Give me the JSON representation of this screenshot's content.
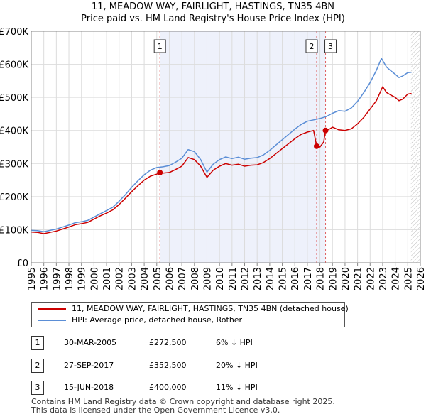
{
  "chart_data": {
    "type": "line",
    "title_line1": "11, MEADOW WAY, FAIRLIGHT, HASTINGS, TN35 4BN",
    "title_line2": "Price paid vs. HM Land Registry's House Price Index (HPI)",
    "xlim": [
      1995,
      2026
    ],
    "ylim": [
      0,
      700000
    ],
    "x_ticks": [
      1995,
      1996,
      1997,
      1998,
      1999,
      2000,
      2001,
      2002,
      2003,
      2004,
      2005,
      2006,
      2007,
      2008,
      2009,
      2010,
      2011,
      2012,
      2013,
      2014,
      2015,
      2016,
      2017,
      2018,
      2019,
      2020,
      2021,
      2022,
      2023,
      2024,
      2025,
      2026
    ],
    "y_ticks": [
      {
        "value": 0,
        "label": "£0"
      },
      {
        "value": 100000,
        "label": "£100K"
      },
      {
        "value": 200000,
        "label": "£200K"
      },
      {
        "value": 300000,
        "label": "£300K"
      },
      {
        "value": 400000,
        "label": "£400K"
      },
      {
        "value": 500000,
        "label": "£500K"
      },
      {
        "value": 600000,
        "label": "£600K"
      },
      {
        "value": 700000,
        "label": "£700K"
      }
    ],
    "series": [
      {
        "name": "11, MEADOW WAY, FAIRLIGHT, HASTINGS, TN35 4BN (detached house)",
        "color": "#cc0000",
        "points": [
          [
            1995.0,
            93000
          ],
          [
            1995.5,
            92000
          ],
          [
            1996.0,
            88000
          ],
          [
            1996.5,
            92000
          ],
          [
            1997.0,
            96000
          ],
          [
            1997.5,
            102000
          ],
          [
            1998.0,
            108000
          ],
          [
            1998.5,
            115000
          ],
          [
            1999.0,
            118000
          ],
          [
            1999.5,
            122000
          ],
          [
            2000.0,
            132000
          ],
          [
            2000.5,
            142000
          ],
          [
            2001.0,
            150000
          ],
          [
            2001.5,
            160000
          ],
          [
            2002.0,
            176000
          ],
          [
            2002.5,
            195000
          ],
          [
            2003.0,
            215000
          ],
          [
            2003.5,
            233000
          ],
          [
            2004.0,
            250000
          ],
          [
            2004.5,
            262000
          ],
          [
            2005.0,
            268000
          ],
          [
            2005.25,
            272500
          ],
          [
            2005.5,
            271000
          ],
          [
            2006.0,
            273000
          ],
          [
            2006.5,
            282000
          ],
          [
            2007.0,
            292000
          ],
          [
            2007.5,
            318000
          ],
          [
            2008.0,
            312000
          ],
          [
            2008.5,
            292000
          ],
          [
            2009.0,
            258000
          ],
          [
            2009.5,
            280000
          ],
          [
            2010.0,
            292000
          ],
          [
            2010.5,
            300000
          ],
          [
            2011.0,
            295000
          ],
          [
            2011.5,
            298000
          ],
          [
            2012.0,
            292000
          ],
          [
            2012.5,
            295000
          ],
          [
            2013.0,
            296000
          ],
          [
            2013.5,
            303000
          ],
          [
            2014.0,
            315000
          ],
          [
            2014.5,
            330000
          ],
          [
            2015.0,
            345000
          ],
          [
            2015.5,
            360000
          ],
          [
            2016.0,
            375000
          ],
          [
            2016.5,
            388000
          ],
          [
            2017.0,
            395000
          ],
          [
            2017.5,
            400000
          ],
          [
            2017.74,
            352500
          ],
          [
            2018.0,
            350000
          ],
          [
            2018.3,
            365000
          ],
          [
            2018.45,
            400000
          ],
          [
            2018.8,
            405000
          ],
          [
            2019.0,
            410000
          ],
          [
            2019.5,
            402000
          ],
          [
            2020.0,
            400000
          ],
          [
            2020.5,
            405000
          ],
          [
            2021.0,
            420000
          ],
          [
            2021.5,
            440000
          ],
          [
            2022.0,
            465000
          ],
          [
            2022.5,
            490000
          ],
          [
            2023.0,
            532000
          ],
          [
            2023.3,
            515000
          ],
          [
            2023.6,
            508000
          ],
          [
            2024.0,
            500000
          ],
          [
            2024.3,
            490000
          ],
          [
            2024.6,
            495000
          ],
          [
            2025.0,
            510000
          ],
          [
            2025.3,
            512000
          ]
        ]
      },
      {
        "name": "HPI: Average price, detached house, Rother",
        "color": "#5b8ed6",
        "points": [
          [
            1995.0,
            98000
          ],
          [
            1995.5,
            97000
          ],
          [
            1996.0,
            94000
          ],
          [
            1996.5,
            98000
          ],
          [
            1997.0,
            102000
          ],
          [
            1997.5,
            108000
          ],
          [
            1998.0,
            114000
          ],
          [
            1998.5,
            121000
          ],
          [
            1999.0,
            124000
          ],
          [
            1999.5,
            128000
          ],
          [
            2000.0,
            138000
          ],
          [
            2000.5,
            148000
          ],
          [
            2001.0,
            158000
          ],
          [
            2001.5,
            168000
          ],
          [
            2002.0,
            186000
          ],
          [
            2002.5,
            206000
          ],
          [
            2003.0,
            228000
          ],
          [
            2003.5,
            248000
          ],
          [
            2004.0,
            266000
          ],
          [
            2004.5,
            280000
          ],
          [
            2005.0,
            288000
          ],
          [
            2005.5,
            290000
          ],
          [
            2006.0,
            294000
          ],
          [
            2006.5,
            304000
          ],
          [
            2007.0,
            316000
          ],
          [
            2007.5,
            342000
          ],
          [
            2008.0,
            336000
          ],
          [
            2008.5,
            312000
          ],
          [
            2009.0,
            274000
          ],
          [
            2009.5,
            298000
          ],
          [
            2010.0,
            312000
          ],
          [
            2010.5,
            320000
          ],
          [
            2011.0,
            315000
          ],
          [
            2011.5,
            319000
          ],
          [
            2012.0,
            313000
          ],
          [
            2012.5,
            316000
          ],
          [
            2013.0,
            318000
          ],
          [
            2013.5,
            326000
          ],
          [
            2014.0,
            340000
          ],
          [
            2014.5,
            356000
          ],
          [
            2015.0,
            372000
          ],
          [
            2015.5,
            388000
          ],
          [
            2016.0,
            404000
          ],
          [
            2016.5,
            418000
          ],
          [
            2017.0,
            428000
          ],
          [
            2017.5,
            432000
          ],
          [
            2018.0,
            436000
          ],
          [
            2018.5,
            442000
          ],
          [
            2019.0,
            452000
          ],
          [
            2019.5,
            460000
          ],
          [
            2020.0,
            458000
          ],
          [
            2020.5,
            468000
          ],
          [
            2021.0,
            488000
          ],
          [
            2021.5,
            515000
          ],
          [
            2022.0,
            545000
          ],
          [
            2022.5,
            582000
          ],
          [
            2022.9,
            618000
          ],
          [
            2023.3,
            592000
          ],
          [
            2023.6,
            582000
          ],
          [
            2024.0,
            570000
          ],
          [
            2024.3,
            560000
          ],
          [
            2024.6,
            565000
          ],
          [
            2025.0,
            575000
          ],
          [
            2025.3,
            576000
          ]
        ]
      }
    ],
    "sales": [
      {
        "id": "1",
        "x": 2005.25,
        "price": 272500
      },
      {
        "id": "2",
        "x": 2017.74,
        "price": 352500
      },
      {
        "id": "3",
        "x": 2018.45,
        "price": 400000
      }
    ],
    "annotation_forecast_start": 2025.25
  },
  "legend": {
    "property_label": "11, MEADOW WAY, FAIRLIGHT, HASTINGS, TN35 4BN (detached house)",
    "hpi_label": "HPI: Average price, detached house, Rother"
  },
  "transactions": [
    {
      "id": "1",
      "date": "30-MAR-2005",
      "price": "£272,500",
      "hpi": "6% ↓ HPI"
    },
    {
      "id": "2",
      "date": "27-SEP-2017",
      "price": "£352,500",
      "hpi": "20% ↓ HPI"
    },
    {
      "id": "3",
      "date": "15-JUN-2018",
      "price": "£400,000",
      "hpi": "11% ↓ HPI"
    }
  ],
  "footer": {
    "line1": "Contains HM Land Registry data © Crown copyright and database right 2025.",
    "line2": "This data is licensed under the Open Government Licence v3.0."
  }
}
